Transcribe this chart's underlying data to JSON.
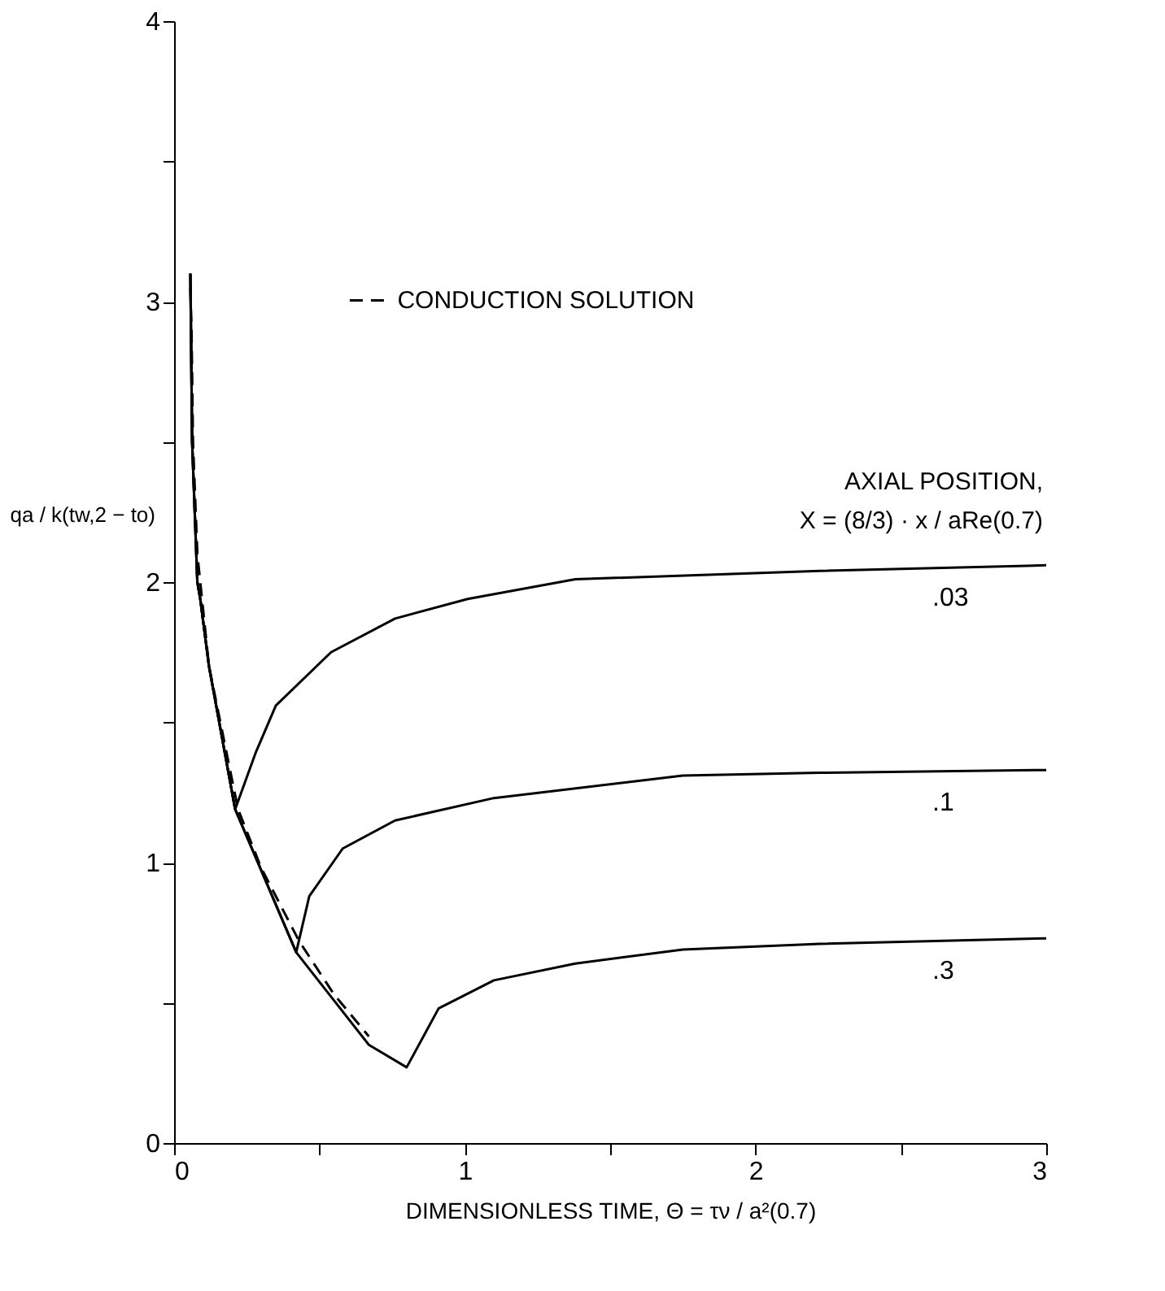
{
  "chart_data": {
    "type": "line",
    "xlabel": "DIMENSIONLESS TIME,  Θ = τν / a²(0.7)",
    "ylabel": "qa / k(tw,2 − to)",
    "xlim": [
      0,
      3
    ],
    "ylim": [
      0,
      4
    ],
    "xticks": [
      0,
      {
        "value": 0.5,
        "label": null
      },
      1,
      {
        "value": 1.5,
        "label": null
      },
      2,
      {
        "value": 2.5,
        "label": null
      },
      3
    ],
    "yticks": [
      0,
      {
        "value": 0.5,
        "label": null
      },
      1,
      {
        "value": 1.5,
        "label": null
      },
      2,
      {
        "value": 2.5,
        "label": null
      },
      3,
      {
        "value": 3.5,
        "label": null
      },
      4
    ],
    "grid": false,
    "legend": "top",
    "marker": "none",
    "annotations": [
      "AXIAL POSITION,",
      "X = (8/3) · x / aRe(0.7)"
    ],
    "series": [
      {
        "name": "CONDUCTION SOLUTION",
        "color": "#000000",
        "line_style": "dashed",
        "x": [
          0.056,
          0.06,
          0.065,
          0.08,
          0.12,
          0.22,
          0.3,
          0.43,
          0.55,
          0.67
        ],
        "values": [
          3.05,
          2.9,
          2.5,
          2.1,
          1.7,
          1.19,
          0.98,
          0.72,
          0.53,
          0.38
        ]
      },
      {
        "name": ".03",
        "color": "#000000",
        "line_style": "solid",
        "x": [
          0.056,
          0.062,
          0.08,
          0.09,
          0.12,
          0.21,
          0.28,
          0.35,
          0.54,
          0.76,
          1.01,
          1.38,
          2.22,
          3.0
        ],
        "values": [
          3.1,
          2.5,
          2.0,
          1.94,
          1.7,
          1.19,
          1.39,
          1.56,
          1.75,
          1.87,
          1.94,
          2.01,
          2.04,
          2.06
        ]
      },
      {
        "name": ".1",
        "color": "#000000",
        "line_style": "solid",
        "x": [
          0.056,
          0.062,
          0.08,
          0.09,
          0.12,
          0.21,
          0.42,
          0.465,
          0.58,
          0.76,
          1.1,
          1.75,
          2.22,
          3.0
        ],
        "values": [
          3.1,
          2.5,
          2.0,
          1.94,
          1.7,
          1.19,
          0.68,
          0.88,
          1.05,
          1.15,
          1.23,
          1.31,
          1.32,
          1.33
        ]
      },
      {
        "name": ".3",
        "color": "#000000",
        "line_style": "solid",
        "x": [
          0.056,
          0.062,
          0.08,
          0.09,
          0.12,
          0.21,
          0.42,
          0.67,
          0.8,
          0.91,
          1.1,
          1.38,
          1.75,
          2.22,
          3.0
        ],
        "values": [
          3.1,
          2.5,
          2.0,
          1.94,
          1.7,
          1.19,
          0.68,
          0.35,
          0.27,
          0.48,
          0.58,
          0.64,
          0.69,
          0.71,
          0.73
        ]
      }
    ]
  }
}
